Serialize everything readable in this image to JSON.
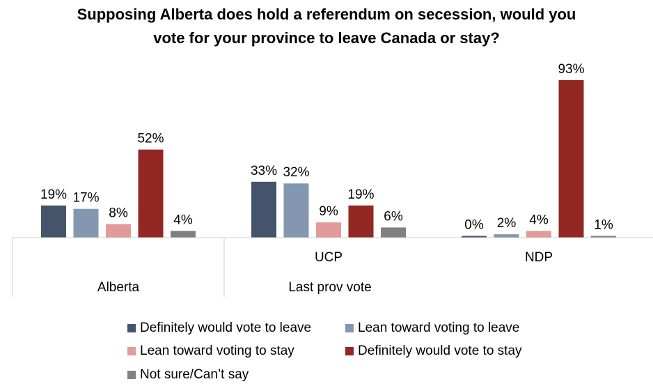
{
  "chart_data": {
    "type": "bar",
    "title_line1": "Supposing Alberta does hold a referendum on secession, would you",
    "title_line2": "vote for your province to leave Canada or stay?",
    "categories": [
      "Alberta",
      "UCP",
      "NDP"
    ],
    "category_groups": [
      {
        "label": "Alberta",
        "categories": [
          "Alberta"
        ]
      },
      {
        "label": "Last prov vote",
        "categories": [
          "UCP",
          "NDP"
        ]
      }
    ],
    "series": [
      {
        "name": "Definitely would vote to leave",
        "color": "#44546A",
        "values": [
          19,
          33,
          0
        ]
      },
      {
        "name": "Lean toward voting to leave",
        "color": "#8497B0",
        "values": [
          17,
          32,
          2
        ]
      },
      {
        "name": "Lean toward voting to stay",
        "color": "#E29A9A",
        "values": [
          8,
          9,
          4
        ]
      },
      {
        "name": "Definitely would vote to stay",
        "color": "#922821",
        "values": [
          52,
          19,
          93
        ]
      },
      {
        "name": "Not sure/Can’t say",
        "color": "#808080",
        "values": [
          4,
          6,
          1
        ]
      }
    ],
    "value_suffix": "%",
    "ylim": [
      0,
      100
    ],
    "grid": false,
    "legend_position": "bottom"
  }
}
